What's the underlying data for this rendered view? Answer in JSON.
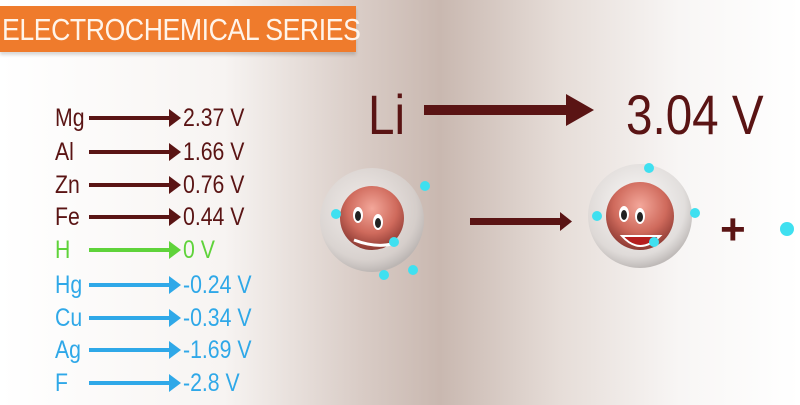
{
  "title": "ELECTROCHEMICAL SERIES",
  "colors": {
    "banner": "#ef7b2c",
    "positive": "#5a1414",
    "zero": "#5fd33a",
    "negative": "#2fa8e8",
    "electron": "#3fe0f0"
  },
  "series": [
    {
      "element": "Mg",
      "value": "2.37 V",
      "kind": "positive"
    },
    {
      "element": "Al",
      "value": "1.66 V",
      "kind": "positive"
    },
    {
      "element": "Zn",
      "value": "0.76 V",
      "kind": "positive"
    },
    {
      "element": "Fe",
      "value": "0.44 V",
      "kind": "positive"
    },
    {
      "element": "H",
      "value": "0 V",
      "kind": "zero"
    },
    {
      "element": "Hg",
      "value": "-0.24 V",
      "kind": "negative"
    },
    {
      "element": "Cu",
      "value": "-0.34 V",
      "kind": "negative"
    },
    {
      "element": "Ag",
      "value": "-1.69 V",
      "kind": "negative"
    },
    {
      "element": "F",
      "value": "-2.8 V",
      "kind": "negative"
    }
  ],
  "highlight": {
    "element": "Li",
    "value": "3.04 V"
  },
  "reaction": {
    "plus": "+"
  }
}
